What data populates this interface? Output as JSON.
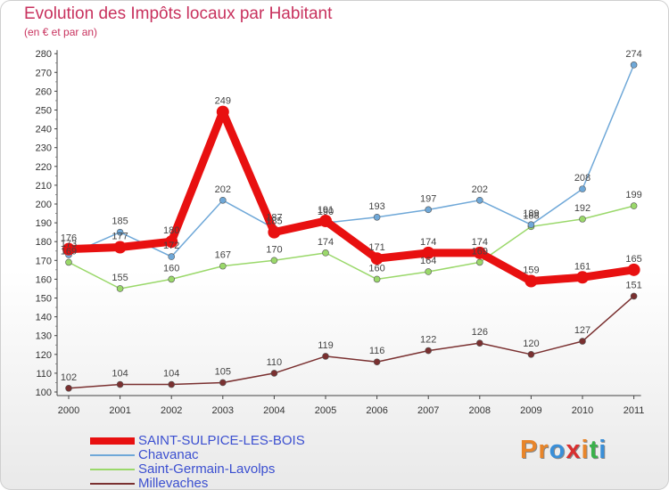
{
  "title": "Evolution des Impôts locaux par Habitant",
  "subtitle": "(en € et par an)",
  "logo": {
    "text": "Proxiti",
    "colors": [
      "#e8852a",
      "#e8852a",
      "#3a8fd8",
      "#d93030",
      "#e8852a",
      "#3ab04a",
      "#3a8fd8"
    ]
  },
  "chart_data": {
    "type": "line",
    "title": "Evolution des Impôts locaux par Habitant",
    "subtitle": "(en € et par an)",
    "x": [
      "2000",
      "2001",
      "2002",
      "2003",
      "2004",
      "2005",
      "2006",
      "2007",
      "2008",
      "2009",
      "2010",
      "2011"
    ],
    "ylim": [
      100,
      280
    ],
    "yticks": [
      100,
      110,
      120,
      130,
      140,
      150,
      160,
      170,
      180,
      190,
      200,
      210,
      220,
      230,
      240,
      250,
      260,
      270,
      280
    ],
    "grid": false,
    "legend_position": "bottom-left",
    "series": [
      {
        "name": "SAINT-SULPICE-LES-BOIS",
        "color": "#e81010",
        "width": 9,
        "marker": 7,
        "values": [
          176,
          177,
          180,
          249,
          185,
          191,
          171,
          174,
          174,
          159,
          161,
          165
        ]
      },
      {
        "name": "Chavanac",
        "color": "#6fa8d8",
        "width": 1.5,
        "marker": 3.5,
        "values": [
          173,
          185,
          172,
          202,
          187,
          190,
          193,
          197,
          202,
          189,
          208,
          274
        ]
      },
      {
        "name": "Saint-Germain-Lavolps",
        "color": "#9ad86a",
        "width": 1.5,
        "marker": 3.5,
        "values": [
          169,
          155,
          160,
          167,
          170,
          174,
          160,
          164,
          169,
          188,
          192,
          199
        ]
      },
      {
        "name": "Millevaches",
        "color": "#7a3030",
        "width": 1.5,
        "marker": 3.5,
        "values": [
          102,
          104,
          104,
          105,
          110,
          119,
          116,
          122,
          126,
          120,
          127,
          151
        ]
      }
    ]
  }
}
